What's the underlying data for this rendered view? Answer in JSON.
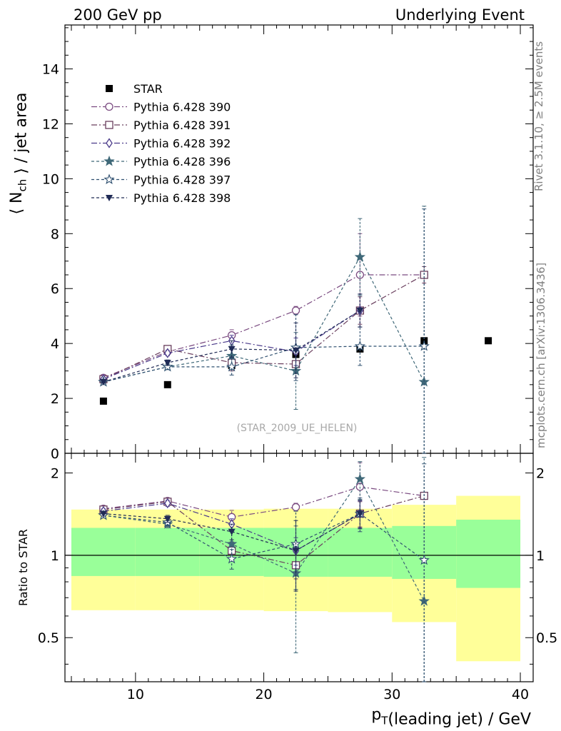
{
  "header": {
    "left": "200 GeV pp",
    "right": "Underlying Event"
  },
  "side_labels": {
    "rivet": "Rivet 3.1.10, ≥ 2.5M events",
    "mcplots": "mcplots.cern.ch [arXiv:1306.3436]"
  },
  "watermark": "(STAR_2009_UE_HELEN)",
  "chart_data": [
    {
      "type": "scatter",
      "panel": "main",
      "ylabel": "⟨ N_ch ⟩ / jet area",
      "xlim": [
        4.5,
        41
      ],
      "ylim": [
        0,
        15.6
      ],
      "yticks": [
        0,
        2,
        4,
        6,
        8,
        10,
        12,
        14
      ],
      "ytick_labels": [
        "0",
        "2",
        "4",
        "6",
        "8",
        "10",
        "12",
        "14"
      ],
      "legend_placement": "top-left",
      "series": [
        {
          "name": "STAR",
          "color": "#000000",
          "marker": "square-filled",
          "dash": "none",
          "x": [
            7.5,
            12.5,
            17.5,
            22.5,
            27.5,
            32.5,
            37.5
          ],
          "y": [
            1.9,
            2.5,
            3.2,
            3.6,
            3.8,
            4.1,
            4.1
          ],
          "err": [
            0,
            0,
            0,
            0,
            0,
            0,
            0
          ]
        },
        {
          "name": "Pythia 6.428 390",
          "color": "#7a4a80",
          "marker": "circle-open",
          "dash": "8 3 2 3",
          "x": [
            7.5,
            12.5,
            17.5,
            22.5,
            27.5,
            32.5
          ],
          "y": [
            2.75,
            3.7,
            4.3,
            5.2,
            6.5,
            6.5
          ],
          "err": [
            0.05,
            0.1,
            0.2,
            0.15,
            1.5,
            0
          ]
        },
        {
          "name": "Pythia 6.428 391",
          "color": "#6a3f5e",
          "marker": "square-open",
          "dash": "8 3 2 3",
          "x": [
            7.5,
            12.5,
            17.5,
            22.5,
            27.5,
            32.5
          ],
          "y": [
            2.7,
            3.8,
            3.3,
            3.25,
            5.2,
            6.5
          ],
          "err": [
            0.05,
            0.1,
            0.3,
            0.35,
            0.5,
            0.3
          ]
        },
        {
          "name": "Pythia 6.428 392",
          "color": "#4a3a8a",
          "marker": "diamond-open",
          "dash": "8 3 2 3",
          "x": [
            7.5,
            12.5,
            17.5,
            22.5,
            27.5
          ],
          "y": [
            2.7,
            3.65,
            4.1,
            3.7,
            5.2
          ],
          "err": [
            0.05,
            0.1,
            0.2,
            0.5,
            0.6
          ]
        },
        {
          "name": "Pythia 6.428 396",
          "color": "#3f6878",
          "marker": "star-filled",
          "dash": "4 3",
          "x": [
            7.5,
            12.5,
            17.5,
            22.5,
            27.5,
            32.5
          ],
          "y": [
            2.6,
            3.15,
            3.55,
            3.0,
            7.15,
            2.6
          ],
          "err": [
            0.05,
            0.1,
            0.4,
            1.4,
            1.4,
            6.4
          ]
        },
        {
          "name": "Pythia 6.428 397",
          "color": "#2f5070",
          "marker": "star-open",
          "dash": "4 3",
          "x": [
            7.5,
            12.5,
            17.5,
            22.5,
            27.5,
            32.5
          ],
          "y": [
            2.6,
            3.15,
            3.15,
            3.85,
            3.9,
            3.9
          ],
          "err": [
            0.05,
            0.1,
            0.3,
            1.2,
            0.7,
            5.0
          ]
        },
        {
          "name": "Pythia 6.428 398",
          "color": "#1f2a55",
          "marker": "triangle-down-filled",
          "dash": "4 3",
          "x": [
            7.5,
            12.5,
            17.5,
            22.5,
            27.5
          ],
          "y": [
            2.6,
            3.3,
            3.8,
            3.75,
            5.2
          ],
          "err": [
            0.05,
            0.1,
            0.3,
            1.0,
            0.6
          ]
        }
      ]
    },
    {
      "type": "scatter",
      "panel": "ratio",
      "ylabel": "Ratio to STAR",
      "xlabel": "p_T(leading jet) / GeV",
      "xlim": [
        4.5,
        41
      ],
      "ylim": [
        0.345,
        2.36
      ],
      "log_y": true,
      "xticks": [
        10,
        20,
        30,
        40
      ],
      "xtick_labels": [
        "10",
        "20",
        "30",
        "40"
      ],
      "yticks": [
        0.5,
        1,
        2
      ],
      "ytick_labels": [
        "0.5",
        "1",
        "2"
      ],
      "reference_line": 1,
      "bands": [
        {
          "x0": 5,
          "x1": 10,
          "yellow": [
            0.63,
            1.47
          ],
          "green": [
            0.84,
            1.26
          ]
        },
        {
          "x0": 10,
          "x1": 15,
          "yellow": [
            0.63,
            1.47
          ],
          "green": [
            0.84,
            1.26
          ]
        },
        {
          "x0": 15,
          "x1": 20,
          "yellow": [
            0.63,
            1.47
          ],
          "green": [
            0.84,
            1.26
          ]
        },
        {
          "x0": 20,
          "x1": 25,
          "yellow": [
            0.625,
            1.48
          ],
          "green": [
            0.835,
            1.26
          ]
        },
        {
          "x0": 25,
          "x1": 30,
          "yellow": [
            0.62,
            1.48
          ],
          "green": [
            0.835,
            1.26
          ]
        },
        {
          "x0": 30,
          "x1": 35,
          "yellow": [
            0.57,
            1.53
          ],
          "green": [
            0.82,
            1.28
          ]
        },
        {
          "x0": 35,
          "x1": 40,
          "yellow": [
            0.41,
            1.65
          ],
          "green": [
            0.76,
            1.35
          ]
        }
      ],
      "series": [
        {
          "name": "Pythia 6.428 390",
          "color": "#7a4a80",
          "marker": "circle-open",
          "dash": "8 3 2 3",
          "x": [
            7.5,
            12.5,
            17.5,
            22.5,
            27.5,
            32.5
          ],
          "y": [
            1.48,
            1.58,
            1.38,
            1.5,
            1.78,
            1.65
          ],
          "err": [
            0.03,
            0.04,
            0.08,
            0.05,
            0.4,
            0
          ]
        },
        {
          "name": "Pythia 6.428 391",
          "color": "#6a3f5e",
          "marker": "square-open",
          "dash": "8 3 2 3",
          "x": [
            7.5,
            12.5,
            17.5,
            22.5,
            27.5,
            32.5
          ],
          "y": [
            1.47,
            1.57,
            1.04,
            0.92,
            1.42,
            1.65
          ],
          "err": [
            0.03,
            0.04,
            0.08,
            0.1,
            0.15,
            0.05
          ]
        },
        {
          "name": "Pythia 6.428 392",
          "color": "#4a3a8a",
          "marker": "diamond-open",
          "dash": "8 3 2 3",
          "x": [
            7.5,
            12.5,
            17.5,
            22.5,
            27.5
          ],
          "y": [
            1.45,
            1.55,
            1.3,
            1.04,
            1.42
          ],
          "err": [
            0.03,
            0.04,
            0.06,
            0.12,
            0.16
          ]
        },
        {
          "name": "Pythia 6.428 396",
          "color": "#3f6878",
          "marker": "star-filled",
          "dash": "4 3",
          "x": [
            7.5,
            12.5,
            17.5,
            22.5,
            27.5,
            32.5
          ],
          "y": [
            1.4,
            1.3,
            1.1,
            0.86,
            1.9,
            0.68
          ],
          "err": [
            0.03,
            0.04,
            0.12,
            0.42,
            0.3,
            1.6
          ]
        },
        {
          "name": "Pythia 6.428 397",
          "color": "#2f5070",
          "marker": "star-open",
          "dash": "4 3",
          "x": [
            7.5,
            12.5,
            17.5,
            22.5,
            27.5,
            32.5
          ],
          "y": [
            1.4,
            1.32,
            0.97,
            1.1,
            1.42,
            0.96
          ],
          "err": [
            0.03,
            0.04,
            0.08,
            0.35,
            0.2,
            1.2
          ]
        },
        {
          "name": "Pythia 6.428 398",
          "color": "#1f2a55",
          "marker": "triangle-down-filled",
          "dash": "4 3",
          "x": [
            7.5,
            12.5,
            17.5,
            22.5,
            27.5
          ],
          "y": [
            1.42,
            1.36,
            1.22,
            1.04,
            1.42
          ],
          "err": [
            0.03,
            0.04,
            0.08,
            0.3,
            0.17
          ]
        }
      ]
    }
  ]
}
